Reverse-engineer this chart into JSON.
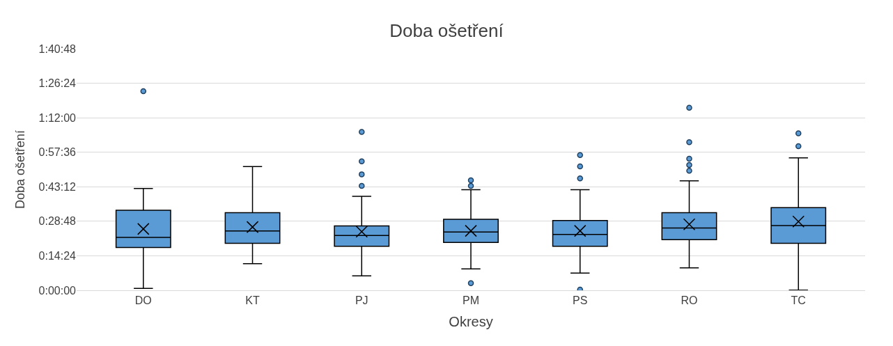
{
  "chart_data": {
    "type": "box",
    "title": "Doba ošetření",
    "xlabel": "Okresy",
    "ylabel": "Doba ošetření",
    "categories": [
      "DO",
      "KT",
      "PJ",
      "PM",
      "PS",
      "RO",
      "TC"
    ],
    "color": "#5b9bd5",
    "boxes": [
      {
        "low": 0.8,
        "q1": 17.9,
        "median": 22.1,
        "q3": 33.4,
        "high": 42.5,
        "mean": 25.6,
        "outliers": [
          83.1
        ]
      },
      {
        "low": 11.1,
        "q1": 19.6,
        "median": 24.8,
        "q3": 32.4,
        "high": 51.6,
        "mean": 26.4
      },
      {
        "low": 6.0,
        "q1": 18.4,
        "median": 22.9,
        "q3": 26.9,
        "high": 39.2,
        "mean": 24.5,
        "outliers": [
          66.1,
          53.8,
          48.4,
          43.6
        ]
      },
      {
        "low": 8.9,
        "q1": 20.0,
        "median": 24.3,
        "q3": 29.6,
        "high": 42.0,
        "mean": 24.8,
        "outliers": [
          45.9,
          43.6,
          3.0
        ]
      },
      {
        "low": 7.2,
        "q1": 18.4,
        "median": 23.3,
        "q3": 29.1,
        "high": 42.0,
        "mean": 24.8,
        "outliers": [
          56.4,
          51.7,
          46.7,
          0.3
        ]
      },
      {
        "low": 9.4,
        "q1": 21.1,
        "median": 26.0,
        "q3": 32.4,
        "high": 45.7,
        "mean": 27.5,
        "outliers": [
          76.2,
          61.8,
          54.9,
          52.3,
          49.9
        ]
      },
      {
        "low": 0.1,
        "q1": 19.6,
        "median": 27.0,
        "q3": 34.5,
        "high": 55.3,
        "mean": 28.7,
        "outliers": [
          65.5,
          60.1
        ]
      }
    ],
    "ylim": [
      0,
      100.8
    ],
    "yticks": [
      {
        "value": 0,
        "label": "0:00:00"
      },
      {
        "value": 14.4,
        "label": "0:14:24"
      },
      {
        "value": 28.8,
        "label": "0:28:48"
      },
      {
        "value": 43.2,
        "label": "0:43:12"
      },
      {
        "value": 57.6,
        "label": "0:57:36"
      },
      {
        "value": 72,
        "label": "1:12:00"
      },
      {
        "value": 86.4,
        "label": "1:26:24"
      },
      {
        "value": 100.8,
        "label": "1:40:48"
      }
    ],
    "grid": "y",
    "marker": "circle"
  }
}
